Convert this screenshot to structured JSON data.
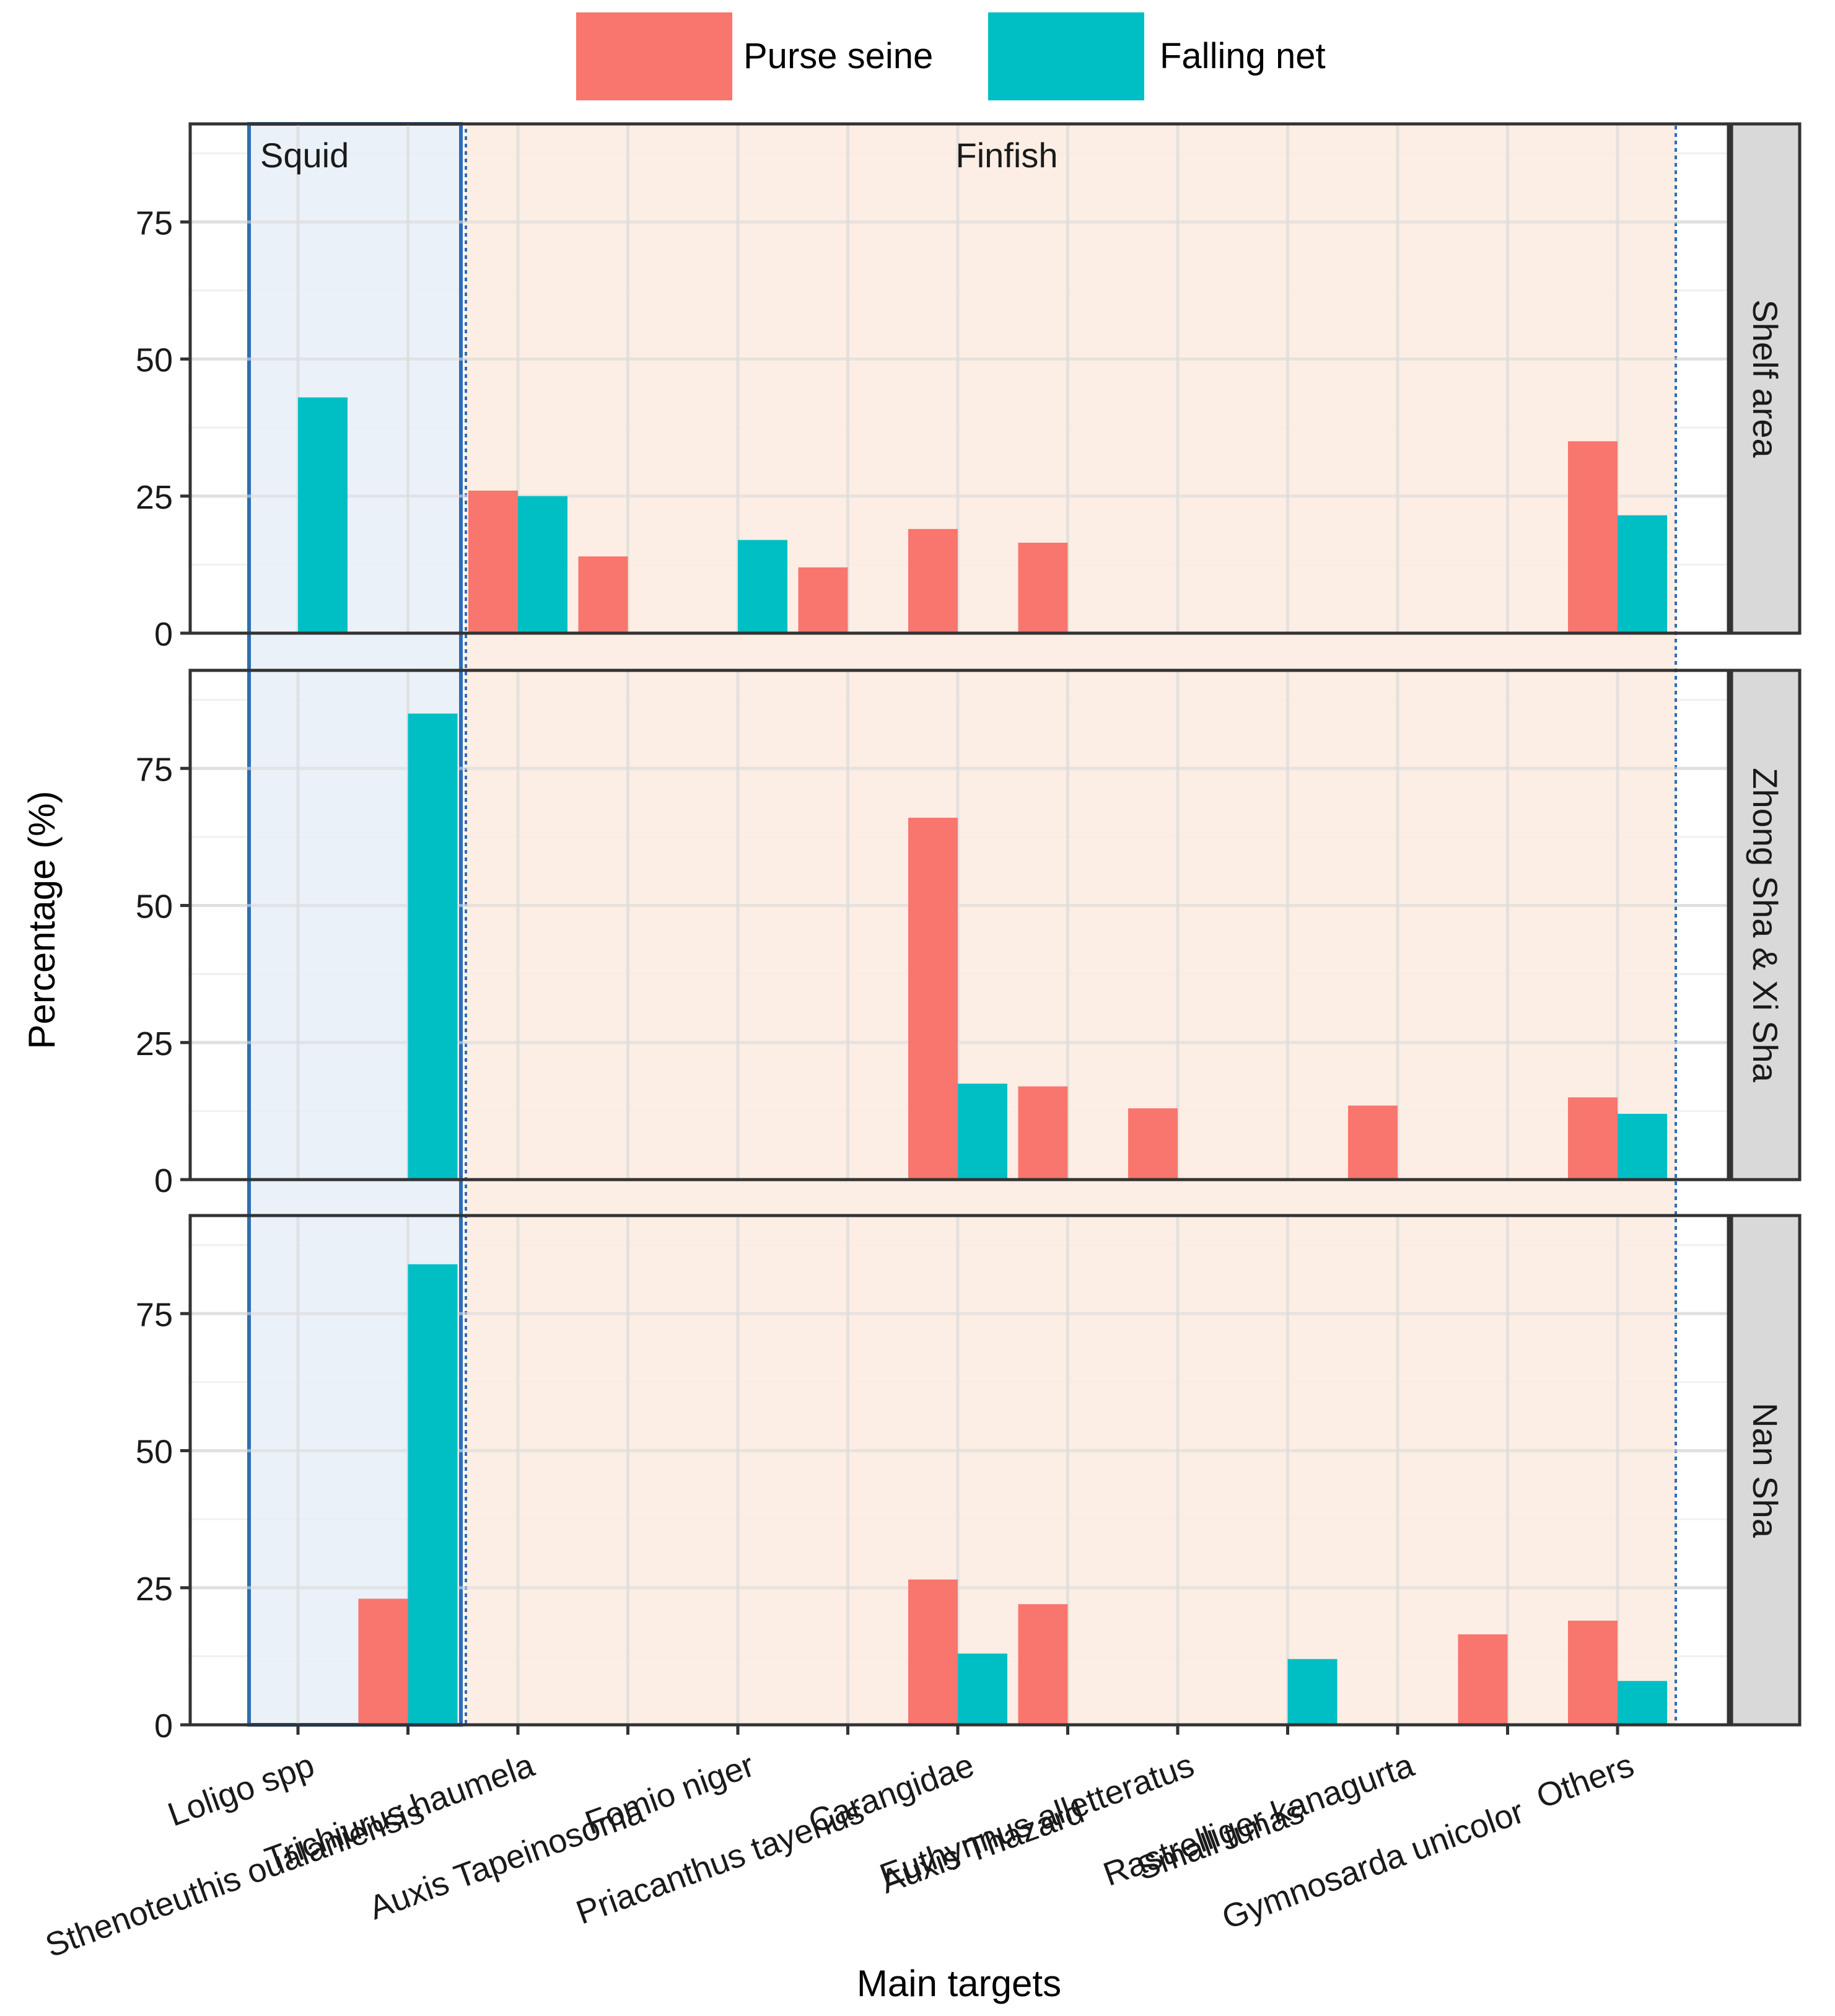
{
  "chart_data": {
    "type": "bar",
    "title": "",
    "xlabel": "Main targets",
    "ylabel": "Percentage (%)",
    "ylim": [
      0,
      90
    ],
    "yticks": [
      0,
      25,
      50,
      75
    ],
    "legend": {
      "position": "top",
      "entries": [
        {
          "name": "Purse seine",
          "color": "#F8766D"
        },
        {
          "name": "Falling net",
          "color": "#00BFC4"
        }
      ]
    },
    "categories": [
      "Loligo spp",
      "Sthenoteuthis oualaniensis",
      "Trichiurus haumela",
      "Auxis Tapeinosoma",
      "Fomio niger",
      "Priacanthus tayenus",
      "Carangidae",
      "Auxis Thazard",
      "Euthynnus alletteratus",
      "Small tunas",
      "Rastrelliger kanagurta",
      "Gymnosarda unicolor",
      "Others"
    ],
    "groups": [
      {
        "label": "Squid",
        "categories": [
          "Loligo spp",
          "Sthenoteuthis oualaniensis"
        ],
        "fill": "#e8eef8",
        "border": "#2e6db4"
      },
      {
        "label": "Finfish",
        "categories_from": "Trichiurus haumela",
        "categories_to": "Others",
        "fill": "#fbebdf",
        "border": "#2e6db4"
      }
    ],
    "panels": [
      {
        "name": "Shelf area",
        "series": [
          {
            "name": "Purse seine",
            "values": [
              0,
              0,
              26,
              14,
              0,
              12,
              19,
              16.5,
              0,
              0,
              0,
              0,
              35
            ]
          },
          {
            "name": "Falling net",
            "values": [
              43,
              0,
              25,
              0,
              17,
              0,
              0,
              0,
              0,
              0,
              0,
              0,
              21.5
            ]
          }
        ]
      },
      {
        "name": "Zhong Sha & Xi Sha",
        "series": [
          {
            "name": "Purse seine",
            "values": [
              0,
              0,
              0,
              0,
              0,
              0,
              66,
              17,
              13,
              0,
              13.5,
              0,
              15
            ]
          },
          {
            "name": "Falling net",
            "values": [
              0,
              85,
              0,
              0,
              0,
              0,
              17.5,
              0,
              0,
              0,
              0,
              0,
              12
            ]
          }
        ]
      },
      {
        "name": "Nan Sha",
        "series": [
          {
            "name": "Purse seine",
            "values": [
              0,
              23,
              0,
              0,
              0,
              0,
              26.5,
              22,
              0,
              0,
              0,
              16.5,
              19
            ]
          },
          {
            "name": "Falling net",
            "values": [
              0,
              84,
              0,
              0,
              0,
              0,
              13,
              0,
              0,
              12,
              0,
              0,
              8
            ]
          }
        ]
      }
    ]
  }
}
